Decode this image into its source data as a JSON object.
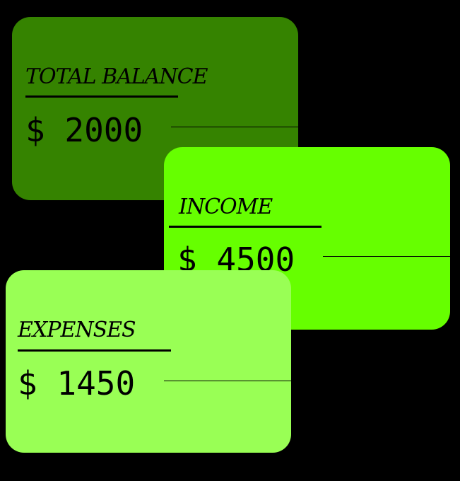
{
  "cards": {
    "total": {
      "title": "TOTAL BALANCE",
      "currency": "$",
      "amount": "2000",
      "color": "#358300"
    },
    "income": {
      "title": "INCOME",
      "currency": "$",
      "amount": "4500",
      "color": "#66ff00"
    },
    "expenses": {
      "title": "EXPENSES",
      "currency": "$",
      "amount": "1450",
      "color": "#99ff55"
    }
  }
}
